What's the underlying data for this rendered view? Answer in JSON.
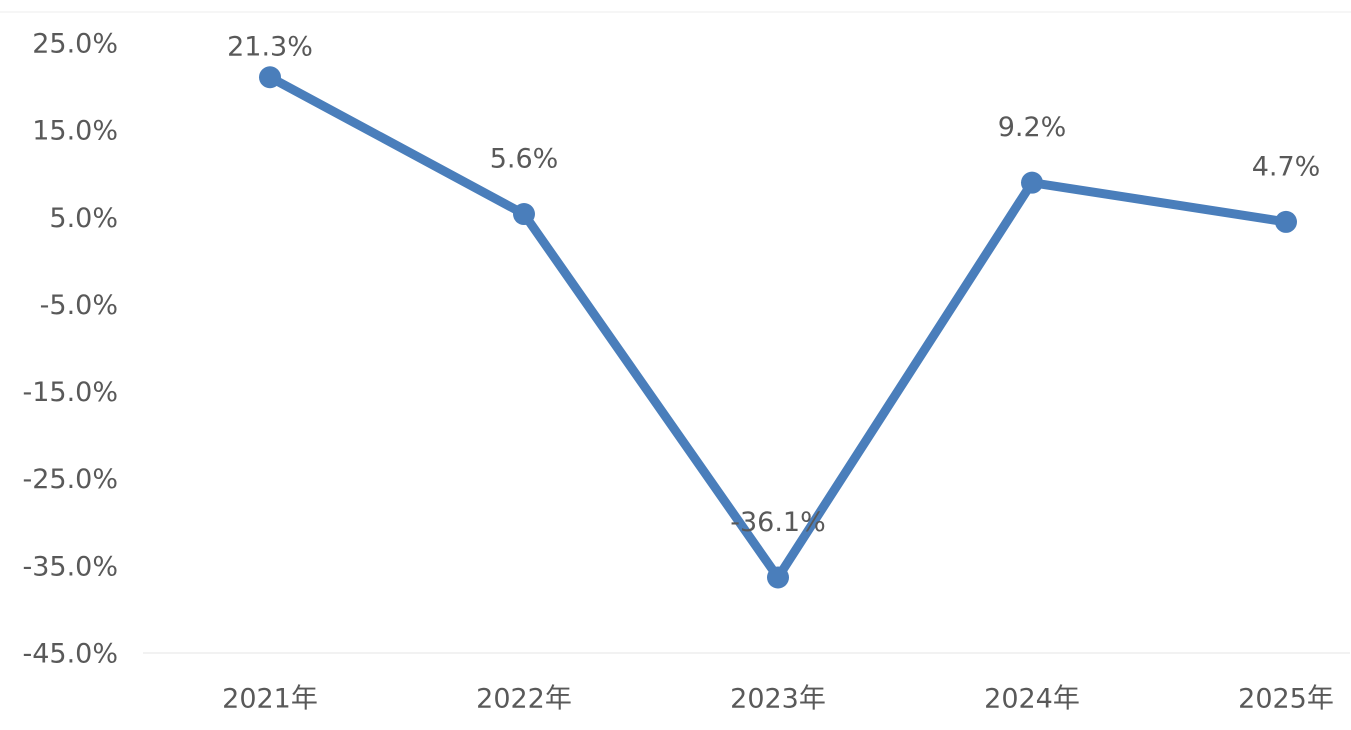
{
  "chart_data": {
    "type": "line",
    "categories": [
      "2021年",
      "2022年",
      "2023年",
      "2024年",
      "2025年"
    ],
    "series": [
      {
        "color": "#4a7ebb",
        "values": [
          21.3,
          5.6,
          -36.1,
          9.2,
          4.7
        ],
        "value_labels": [
          "21.3%",
          "5.6%",
          "-36.1%",
          "9.2%",
          "4.7%"
        ]
      }
    ],
    "ylim": [
      -45,
      25
    ],
    "yticks": [
      {
        "value": -45,
        "label": "-45.0%"
      },
      {
        "value": -35,
        "label": "-35.0%"
      },
      {
        "value": -25,
        "label": "-25.0%"
      },
      {
        "value": -15,
        "label": "-15.0%"
      },
      {
        "value": -5,
        "label": "-5.0%"
      },
      {
        "value": 5,
        "label": "5.0%"
      },
      {
        "value": 15,
        "label": "15.0%"
      },
      {
        "value": 25,
        "label": "25.0%"
      }
    ],
    "grid": false
  }
}
